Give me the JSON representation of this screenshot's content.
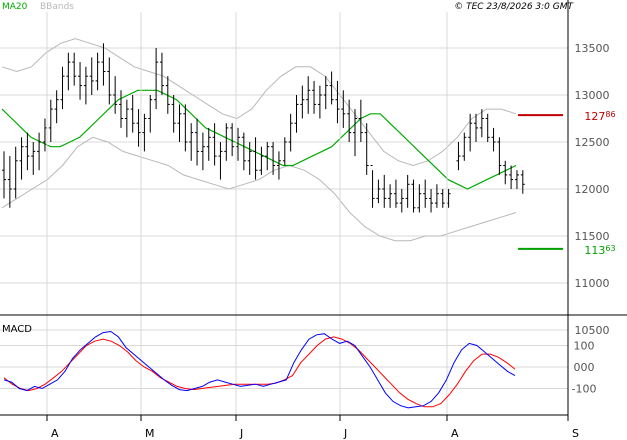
{
  "header": {
    "indicator": "MA20",
    "bands": "BBands",
    "copyright": "© TEC 23/8/2026 3:0 GMT"
  },
  "levels": {
    "resistance": {
      "value": 12786,
      "int": "127",
      "frac": "86",
      "color": "#c00000"
    },
    "support": {
      "value": 11363,
      "int": "113",
      "frac": "63",
      "color": "#00a000"
    }
  },
  "colors": {
    "price": "#000000",
    "ma": "#00aa00",
    "bands": "#b8b8b8",
    "macd": "#0000ff",
    "signal": "#ff0000",
    "grid": "#d8d8d8"
  },
  "chart_data": [
    {
      "type": "ohlc",
      "indicators": [
        "MA20",
        "BBands"
      ],
      "ylim": [
        10000,
        14000
      ],
      "y_ticks": [
        10500,
        11000,
        11500,
        12000,
        12500,
        13000,
        13500
      ],
      "y_tick_labels": [
        "10500",
        "11000",
        "11500",
        "12000",
        "12500",
        "13000",
        "13500"
      ],
      "x_labels": [
        "A",
        "M",
        "J",
        "J",
        "A",
        "S"
      ],
      "bars": [
        [
          12200,
          12400,
          11900,
          12100
        ],
        [
          12100,
          12350,
          11800,
          12000
        ],
        [
          12000,
          12450,
          11900,
          12300
        ],
        [
          12300,
          12550,
          12100,
          12450
        ],
        [
          12450,
          12600,
          12200,
          12350
        ],
        [
          12350,
          12500,
          12150,
          12400
        ],
        [
          12400,
          12600,
          12200,
          12500
        ],
        [
          12500,
          12750,
          12400,
          12650
        ],
        [
          12650,
          12950,
          12500,
          12850
        ],
        [
          12850,
          13050,
          12700,
          12950
        ],
        [
          12950,
          13300,
          12850,
          13200
        ],
        [
          13200,
          13450,
          13050,
          13350
        ],
        [
          13350,
          13450,
          13100,
          13200
        ],
        [
          13200,
          13350,
          12950,
          13100
        ],
        [
          13100,
          13300,
          12900,
          13200
        ],
        [
          13200,
          13400,
          13000,
          13150
        ],
        [
          13150,
          13450,
          13050,
          13350
        ],
        [
          13350,
          13550,
          13100,
          13250
        ],
        [
          13250,
          13400,
          12900,
          13000
        ],
        [
          13000,
          13200,
          12800,
          12900
        ],
        [
          12900,
          13050,
          12650,
          12750
        ],
        [
          12750,
          12950,
          12550,
          12850
        ],
        [
          12850,
          13000,
          12600,
          12700
        ],
        [
          12700,
          12850,
          12450,
          12600
        ],
        [
          12600,
          12800,
          12400,
          12750
        ],
        [
          12750,
          13000,
          12600,
          12950
        ],
        [
          12950,
          13500,
          12850,
          13350
        ],
        [
          13350,
          13450,
          13000,
          13100
        ],
        [
          13100,
          13200,
          12800,
          12900
        ],
        [
          12900,
          13000,
          12600,
          12700
        ],
        [
          12700,
          12900,
          12500,
          12800
        ],
        [
          12800,
          12900,
          12400,
          12500
        ],
        [
          12500,
          12700,
          12300,
          12600
        ],
        [
          12600,
          12750,
          12250,
          12400
        ],
        [
          12400,
          12600,
          12200,
          12450
        ],
        [
          12450,
          12650,
          12300,
          12550
        ],
        [
          12550,
          12700,
          12250,
          12350
        ],
        [
          12350,
          12500,
          12100,
          12400
        ],
        [
          12400,
          12700,
          12300,
          12650
        ],
        [
          12650,
          12700,
          12350,
          12450
        ],
        [
          12450,
          12650,
          12300,
          12550
        ],
        [
          12550,
          12600,
          12200,
          12300
        ],
        [
          12300,
          12500,
          12150,
          12400
        ],
        [
          12400,
          12550,
          12100,
          12200
        ],
        [
          12200,
          12450,
          12150,
          12350
        ],
        [
          12350,
          12500,
          12200,
          12450
        ],
        [
          12450,
          12500,
          12150,
          12250
        ],
        [
          12250,
          12400,
          12100,
          12300
        ],
        [
          12300,
          12550,
          12250,
          12500
        ],
        [
          12500,
          12800,
          12400,
          12700
        ],
        [
          12700,
          13000,
          12600,
          12900
        ],
        [
          12900,
          13100,
          12750,
          12950
        ],
        [
          12950,
          13200,
          12800,
          13050
        ],
        [
          13050,
          13150,
          12800,
          12900
        ],
        [
          12900,
          13100,
          12750,
          13000
        ],
        [
          13000,
          13200,
          12850,
          13100
        ],
        [
          13100,
          13250,
          12900,
          12950
        ],
        [
          12950,
          13150,
          12700,
          12850
        ],
        [
          12850,
          13050,
          12650,
          12800
        ],
        [
          12800,
          12950,
          12500,
          12600
        ],
        [
          12600,
          12850,
          12350,
          12750
        ],
        [
          12750,
          12950,
          12500,
          12600
        ],
        [
          12600,
          12700,
          12150,
          12250
        ],
        [
          12250,
          12200,
          11800,
          11900
        ],
        [
          11900,
          12100,
          11850,
          12000
        ],
        [
          12000,
          12150,
          11800,
          11900
        ],
        [
          11900,
          12050,
          11800,
          11950
        ],
        [
          11950,
          12100,
          11800,
          11850
        ],
        [
          11850,
          12000,
          11750,
          11900
        ],
        [
          11900,
          12150,
          11800,
          12050
        ],
        [
          12050,
          12100,
          11750,
          11800
        ],
        [
          11800,
          12050,
          11750,
          11950
        ],
        [
          11950,
          12100,
          11800,
          11900
        ],
        [
          11900,
          12000,
          11750,
          11850
        ],
        [
          11850,
          12050,
          11800,
          11950
        ],
        [
          11950,
          12000,
          11800,
          11850
        ],
        [
          11850,
          12000,
          11800,
          11950
        ],
        [
          12300,
          12500,
          12200,
          12350
        ],
        [
          12350,
          12600,
          12300,
          12550
        ],
        [
          12550,
          12800,
          12400,
          12700
        ],
        [
          12700,
          12800,
          12500,
          12650
        ],
        [
          12650,
          12850,
          12550,
          12750
        ],
        [
          12750,
          12800,
          12500,
          12550
        ],
        [
          12550,
          12650,
          12400,
          12500
        ],
        [
          12500,
          12550,
          12150,
          12250
        ],
        [
          12250,
          12300,
          12050,
          12150
        ],
        [
          12150,
          12250,
          12000,
          12100
        ],
        [
          12100,
          12200,
          12000,
          12150
        ],
        [
          12150,
          12200,
          11950,
          12050
        ]
      ],
      "ma20": [
        12850,
        12750,
        12650,
        12550,
        12500,
        12450,
        12450,
        12500,
        12550,
        12650,
        12750,
        12850,
        12950,
        13000,
        13050,
        13050,
        13050,
        13000,
        12950,
        12850,
        12750,
        12650,
        12600,
        12550,
        12500,
        12450,
        12400,
        12350,
        12300,
        12250,
        12250,
        12300,
        12350,
        12400,
        12450,
        12550,
        12650,
        12750,
        12800,
        12800,
        12700,
        12600,
        12500,
        12400,
        12300,
        12200,
        12100,
        12050,
        12000,
        12050,
        12100,
        12150,
        12200,
        12250
      ],
      "bb_upper": [
        13300,
        13250,
        13300,
        13450,
        13550,
        13600,
        13550,
        13500,
        13400,
        13300,
        13250,
        13200,
        13100,
        13000,
        12900,
        12800,
        12750,
        12850,
        13050,
        13200,
        13300,
        13300,
        13200,
        13000,
        12800,
        12600,
        12400,
        12300,
        12250,
        12300,
        12400,
        12550,
        12750,
        12850,
        12850,
        12800
      ],
      "bb_lower": [
        11800,
        11900,
        12000,
        12100,
        12250,
        12450,
        12550,
        12500,
        12400,
        12350,
        12300,
        12250,
        12150,
        12100,
        12050,
        12000,
        12050,
        12100,
        12200,
        12250,
        12200,
        12100,
        11950,
        11750,
        11600,
        11500,
        11450,
        11450,
        11500,
        11500,
        11550,
        11600,
        11650,
        11700,
        11750
      ],
      "series": [
        {
          "name": "MA20",
          "values_key": "ma20"
        },
        {
          "name": "BBands",
          "values_key": "bb_upper"
        },
        {
          "name": "BBands",
          "values_key": "bb_lower"
        }
      ]
    },
    {
      "type": "line",
      "title": "MACD",
      "ylim": [
        -200,
        200
      ],
      "y_ticks": [
        -100,
        0,
        100
      ],
      "y_tick_labels": [
        "-100",
        "000",
        "100"
      ],
      "series": [
        {
          "name": "MACD",
          "values": [
            -60,
            -70,
            -100,
            -110,
            -90,
            -100,
            -80,
            -60,
            -20,
            40,
            80,
            110,
            140,
            160,
            165,
            140,
            90,
            60,
            30,
            0,
            -30,
            -60,
            -85,
            -105,
            -110,
            -100,
            -90,
            -70,
            -60,
            -70,
            -80,
            -90,
            -85,
            -80,
            -90,
            -80,
            -70,
            -60,
            20,
            80,
            130,
            150,
            155,
            130,
            110,
            120,
            100,
            50,
            0,
            -60,
            -120,
            -160,
            -180,
            -190,
            -185,
            -180,
            -160,
            -120,
            -60,
            20,
            80,
            110,
            100,
            70,
            40,
            10,
            -20,
            -40
          ]
        },
        {
          "name": "Signal",
          "values": [
            -50,
            -80,
            -100,
            -110,
            -100,
            -80,
            -50,
            -20,
            20,
            60,
            100,
            120,
            130,
            120,
            100,
            70,
            30,
            0,
            -20,
            -50,
            -70,
            -90,
            -100,
            -105,
            -100,
            -95,
            -90,
            -85,
            -80,
            -80,
            -80,
            -80,
            -80,
            -75,
            -60,
            -40,
            20,
            60,
            100,
            130,
            140,
            130,
            110,
            80,
            40,
            0,
            -40,
            -80,
            -120,
            -150,
            -170,
            -185,
            -185,
            -170,
            -130,
            -80,
            -20,
            30,
            60,
            60,
            45,
            20,
            -10
          ]
        }
      ]
    }
  ]
}
